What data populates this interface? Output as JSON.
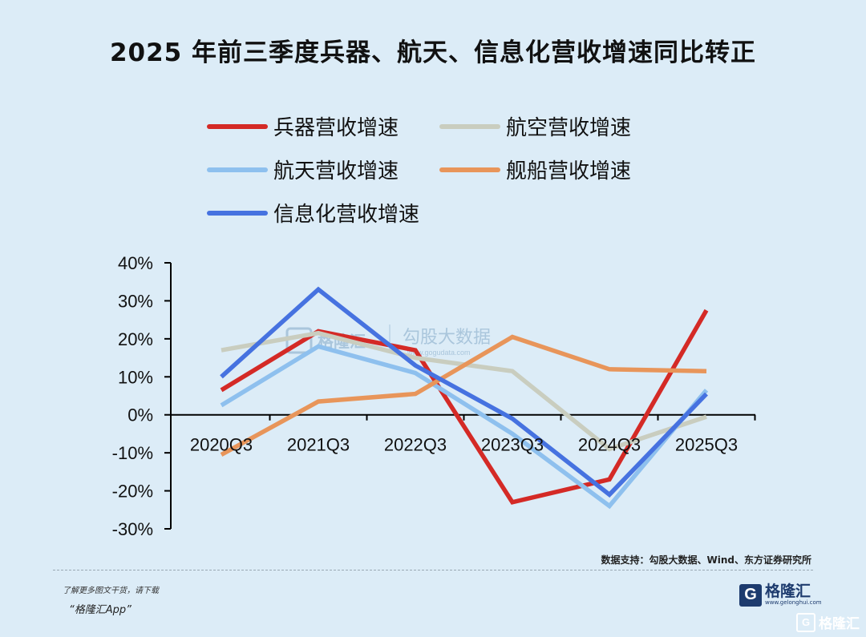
{
  "header": {
    "title": "2025 年前三季度兵器、航天、信息化营收增速同比转正"
  },
  "chart_data": {
    "type": "line",
    "categories": [
      "2020Q3",
      "2021Q3",
      "2022Q3",
      "2023Q3",
      "2024Q3",
      "2025Q3"
    ],
    "y_ticks": [
      "40%",
      "30%",
      "20%",
      "10%",
      "0%",
      "-10%",
      "-20%",
      "-30%"
    ],
    "ylim": [
      -30,
      40
    ],
    "grid": false,
    "legend_position": "top",
    "series": [
      {
        "name": "兵器营收增速",
        "color": "#d42a26",
        "values": [
          6.5,
          22,
          17,
          -23,
          -17,
          27.5
        ]
      },
      {
        "name": "航空营收增速",
        "color": "#c9cdbf",
        "values": [
          17,
          21.5,
          15,
          11.5,
          -9,
          -0.5
        ]
      },
      {
        "name": "航天营收增速",
        "color": "#8ec0ee",
        "values": [
          2.5,
          18,
          11,
          -5,
          -24,
          6.5
        ]
      },
      {
        "name": "舰船营收增速",
        "color": "#e8955a",
        "values": [
          -10.5,
          3.5,
          5.5,
          20.5,
          12,
          11.5
        ]
      },
      {
        "name": "信息化营收增速",
        "color": "#4672e0",
        "values": [
          10,
          33,
          13,
          -1,
          -21,
          5.5
        ]
      }
    ]
  },
  "watermark": {
    "brand": "格隆汇",
    "text": "勾股大数据",
    "url": "www.gogudata.com"
  },
  "footer": {
    "source": "数据支持：勾股大数据、Wind、东方证券研究所",
    "promo_line1": "了解更多图文干货，请下载",
    "promo_line2": "“格隆汇App”",
    "brand_logo": "G",
    "brand_name": "格隆汇",
    "brand_url": "www.gelonghui.com",
    "corner_logo": "G",
    "corner_name": "格隆汇"
  }
}
